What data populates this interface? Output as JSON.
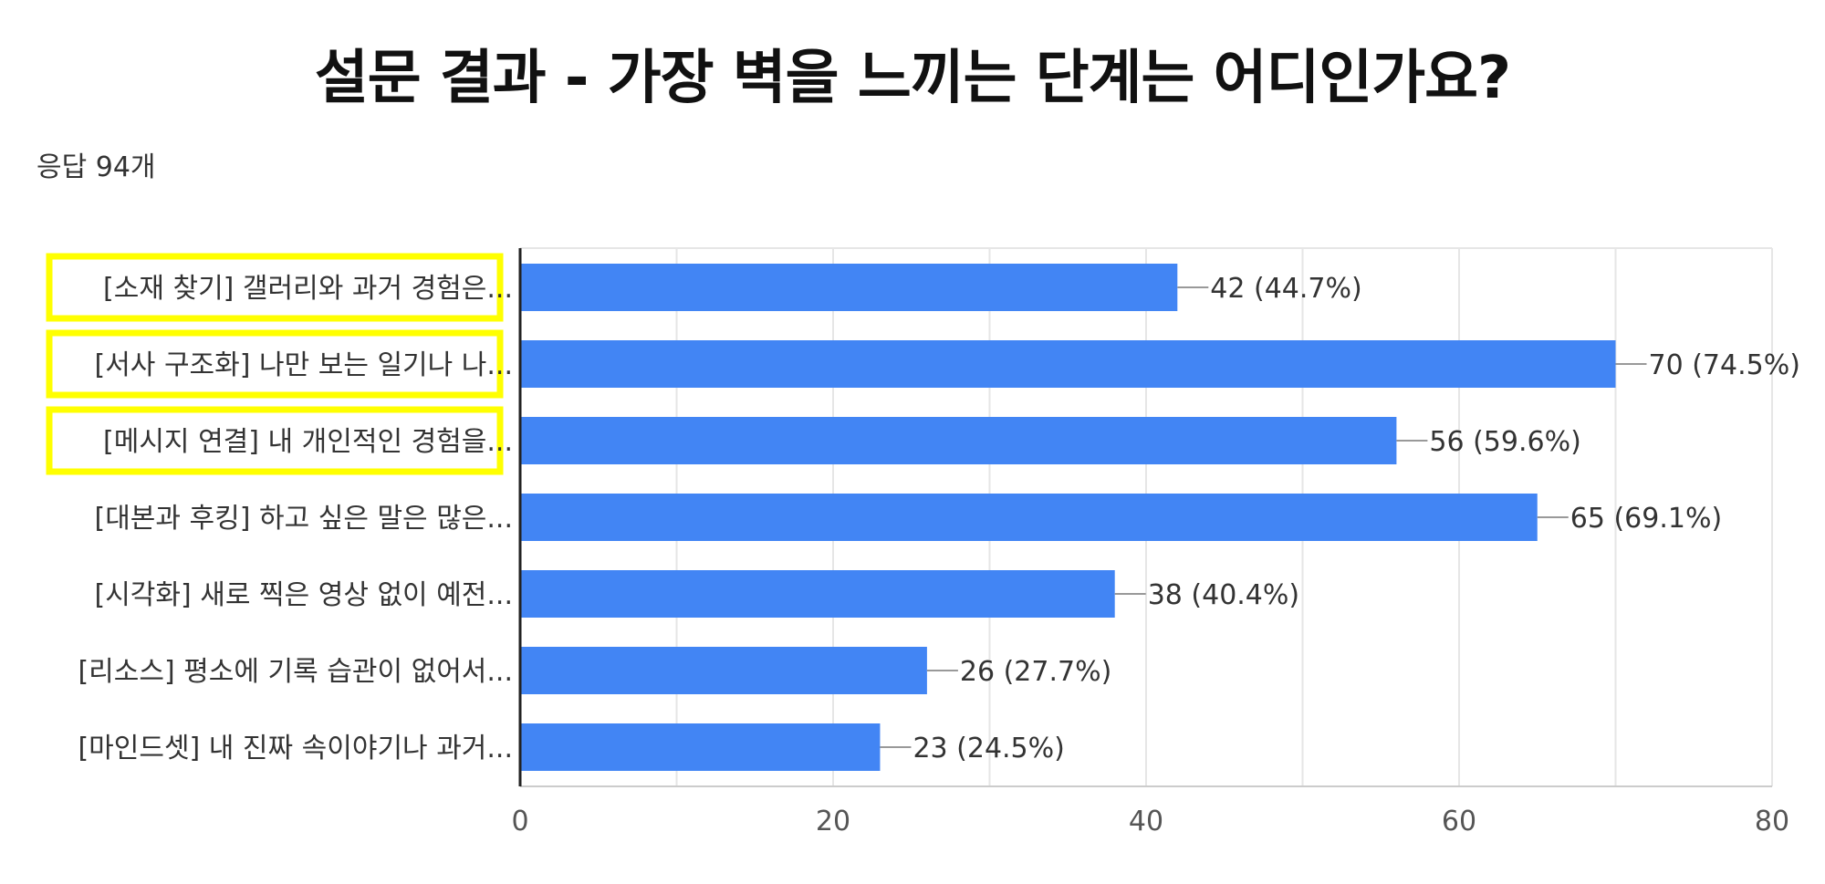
{
  "header": {
    "title": "설문 결과 - 가장 벽을 느끼는 단계는 어디인가요?",
    "response_count": "응답 94개"
  },
  "colors": {
    "bar": "#4285f4",
    "highlight_box": "#ffff00",
    "grid": "#e6e6e6",
    "axis": "#222222",
    "leader_line": "#999999"
  },
  "highlighted_categories": [
    0,
    1,
    2
  ],
  "chart_data": {
    "type": "bar",
    "orientation": "horizontal",
    "categories": [
      "[소재 찾기] 갤러리와 과거 경험은...",
      "[서사 구조화] 나만 보는 일기나 나...",
      "[메시지 연결] 내 개인적인 경험을...",
      "[대본과 후킹] 하고 싶은 말은 많은...",
      "[시각화] 새로 찍은 영상 없이 예전...",
      "[리소스] 평소에 기록 습관이 없어서...",
      "[마인드셋] 내 진짜 속이야기나 과거..."
    ],
    "values": [
      42,
      70,
      56,
      65,
      38,
      26,
      23
    ],
    "data_labels": [
      "42 (44.7%)",
      "70 (74.5%)",
      "56 (59.6%)",
      "65 (69.1%)",
      "38 (40.4%)",
      "26 (27.7%)",
      "23 (24.5%)"
    ],
    "xlim": [
      0,
      80
    ],
    "xticks": [
      0,
      20,
      40,
      60,
      80
    ],
    "xtick_labels": [
      "0",
      "20",
      "40",
      "60",
      "80"
    ],
    "minor_gridlines": [
      10,
      30,
      50,
      70
    ],
    "grid": true,
    "xlabel": "",
    "ylabel": ""
  }
}
